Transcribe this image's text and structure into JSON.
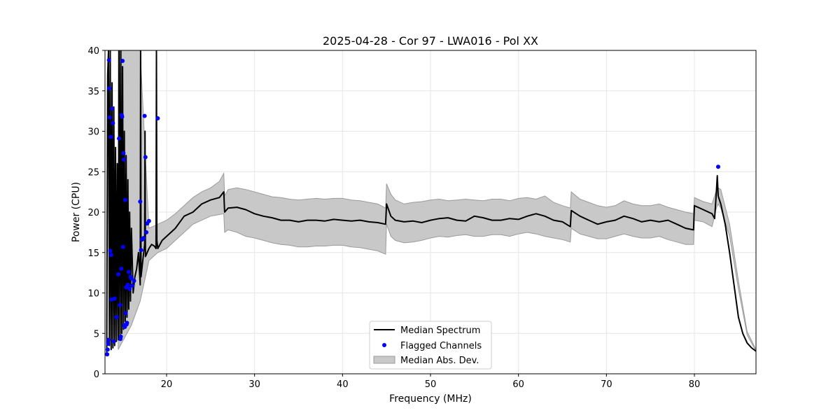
{
  "chart_data": {
    "type": "line",
    "title": "2025-04-28 - Cor 97 - LWA016 - Pol XX",
    "xlabel": "Frequency (MHz)",
    "ylabel": "Power (CPU)",
    "xlim": [
      13.0,
      87.0
    ],
    "ylim": [
      0,
      40
    ],
    "xticks": [
      20,
      30,
      40,
      50,
      60,
      70,
      80
    ],
    "yticks": [
      0,
      5,
      10,
      15,
      20,
      25,
      30,
      35,
      40
    ],
    "grid": true,
    "legend_position": "lower-center",
    "colors": {
      "median": "#000000",
      "flagged": "#0000ff",
      "mad_fill": "#c8c8c8",
      "mad_edge": "#9a9a9a"
    },
    "series": [
      {
        "name": "Median Spectrum",
        "kind": "line",
        "x": [
          13.2,
          13.3,
          13.4,
          13.5,
          13.6,
          13.7,
          13.8,
          13.9,
          14.0,
          14.1,
          14.2,
          14.3,
          14.4,
          14.5,
          14.6,
          14.7,
          14.8,
          14.9,
          15.0,
          15.1,
          15.2,
          15.3,
          15.4,
          15.5,
          15.6,
          15.7,
          15.8,
          15.9,
          16.0,
          16.2,
          16.4,
          16.6,
          16.8,
          17.0,
          17.05,
          17.1,
          17.3,
          17.5,
          17.55,
          17.6,
          17.8,
          18.0,
          18.3,
          18.6,
          18.8,
          18.85,
          18.9,
          19.0,
          19.5,
          20.0,
          21.0,
          22.0,
          23.0,
          24.0,
          25.0,
          26.0,
          26.5,
          26.6,
          27.0,
          28.0,
          29.0,
          30.0,
          31.0,
          32.0,
          33.0,
          34.0,
          35.0,
          36.0,
          37.0,
          38.0,
          39.0,
          40.0,
          41.0,
          42.0,
          43.0,
          44.0,
          44.9,
          45.0,
          45.5,
          46.0,
          47.0,
          48.0,
          49.0,
          50.0,
          51.0,
          52.0,
          53.0,
          54.0,
          55.0,
          56.0,
          57.0,
          58.0,
          59.0,
          60.0,
          61.0,
          62.0,
          63.0,
          64.0,
          65.0,
          65.9,
          66.0,
          67.0,
          68.0,
          69.0,
          70.0,
          71.0,
          72.0,
          73.0,
          74.0,
          75.0,
          76.0,
          77.0,
          78.0,
          79.0,
          79.9,
          80.0,
          81.0,
          82.0,
          82.3,
          82.5,
          82.6,
          82.7,
          83.0,
          83.5,
          84.0,
          84.5,
          85.0,
          85.5,
          86.0,
          86.5,
          87.0
        ],
        "values": [
          2.5,
          37.0,
          40.0,
          3.5,
          40.0,
          3.0,
          36.0,
          3.2,
          33.0,
          3.5,
          28.0,
          4.0,
          26.0,
          4.2,
          40.0,
          4.5,
          40.0,
          5.0,
          38.0,
          5.5,
          30.0,
          6.5,
          27.0,
          7.0,
          24.0,
          8.0,
          20.0,
          9.0,
          18.0,
          10.0,
          12.0,
          13.0,
          15.0,
          11.0,
          40.0,
          12.0,
          14.0,
          16.0,
          30.0,
          14.5,
          15.0,
          15.5,
          16.0,
          15.8,
          15.5,
          40.0,
          16.5,
          15.5,
          16.5,
          17.0,
          18.0,
          19.5,
          20.0,
          21.0,
          21.5,
          21.8,
          22.5,
          20.0,
          20.5,
          20.6,
          20.3,
          19.8,
          19.5,
          19.3,
          19.0,
          19.0,
          18.8,
          19.0,
          19.0,
          18.9,
          19.1,
          19.0,
          18.9,
          19.0,
          18.8,
          18.7,
          18.5,
          21.0,
          19.5,
          19.0,
          18.8,
          18.9,
          18.7,
          19.0,
          19.2,
          19.3,
          19.0,
          18.9,
          19.5,
          19.3,
          19.0,
          19.0,
          19.2,
          19.1,
          19.5,
          19.8,
          19.5,
          19.0,
          18.8,
          18.2,
          20.2,
          19.5,
          19.0,
          18.5,
          18.8,
          19.0,
          19.5,
          19.2,
          18.8,
          19.0,
          18.8,
          19.0,
          18.5,
          18.0,
          17.8,
          20.8,
          20.3,
          19.8,
          19.2,
          22.5,
          24.5,
          22.0,
          21.0,
          18.5,
          15.0,
          11.0,
          7.0,
          5.0,
          3.8,
          3.2,
          2.8
        ]
      },
      {
        "name": "Flagged Channels",
        "kind": "scatter",
        "x": [
          13.25,
          13.3,
          13.35,
          13.4,
          13.45,
          13.5,
          13.55,
          13.6,
          13.65,
          13.7,
          13.75,
          13.8,
          13.9,
          14.0,
          14.1,
          14.3,
          14.5,
          14.6,
          14.7,
          14.75,
          14.8,
          14.85,
          14.9,
          14.95,
          15.0,
          15.05,
          15.1,
          15.15,
          15.2,
          15.25,
          15.3,
          15.35,
          15.4,
          15.45,
          15.5,
          15.6,
          15.7,
          15.8,
          15.9,
          16.0,
          16.1,
          16.3,
          17.0,
          17.1,
          17.2,
          17.4,
          17.5,
          17.6,
          17.7,
          17.8,
          18.0,
          19.0,
          82.7
        ],
        "values": [
          2.4,
          3.0,
          3.7,
          4.2,
          38.8,
          35.3,
          31.7,
          15.2,
          29.3,
          14.7,
          9.2,
          32.8,
          31.0,
          4.0,
          9.3,
          7.0,
          12.3,
          29.1,
          8.5,
          4.3,
          4.6,
          13.0,
          32.0,
          31.8,
          38.7,
          15.7,
          27.3,
          26.5,
          6.0,
          5.8,
          21.5,
          7.5,
          10.7,
          6.1,
          6.3,
          11.0,
          12.6,
          10.5,
          12.0,
          11.8,
          10.9,
          11.5,
          21.3,
          15.3,
          16.6,
          16.8,
          31.9,
          26.8,
          17.5,
          18.6,
          18.9,
          31.6,
          25.6
        ]
      },
      {
        "name": "Median Abs. Dev.",
        "kind": "band",
        "x": [
          14.5,
          15.0,
          16.0,
          17.0,
          18.0,
          19.0,
          20.0,
          21.0,
          22.0,
          23.0,
          24.0,
          25.0,
          26.0,
          26.5,
          26.6,
          27.0,
          28.0,
          29.0,
          30.0,
          31.0,
          32.0,
          33.0,
          34.0,
          35.0,
          36.0,
          37.0,
          38.0,
          39.0,
          40.0,
          41.0,
          42.0,
          43.0,
          44.0,
          44.9,
          45.0,
          45.5,
          46.0,
          47.0,
          48.0,
          49.0,
          50.0,
          51.0,
          52.0,
          53.0,
          54.0,
          55.0,
          56.0,
          57.0,
          58.0,
          59.0,
          60.0,
          61.0,
          62.0,
          63.0,
          64.0,
          65.0,
          65.9,
          66.0,
          67.0,
          68.0,
          69.0,
          70.0,
          71.0,
          72.0,
          73.0,
          74.0,
          75.0,
          76.0,
          77.0,
          78.0,
          79.0,
          79.9,
          80.0,
          81.0,
          82.0,
          82.5,
          82.7,
          83.0,
          84.0,
          85.0,
          86.0,
          87.0
        ],
        "lower": [
          3.0,
          4.0,
          6.0,
          9.0,
          14.0,
          15.0,
          15.5,
          16.5,
          17.5,
          18.5,
          19.0,
          19.5,
          19.7,
          19.8,
          17.5,
          17.8,
          17.5,
          17.0,
          16.8,
          16.5,
          16.2,
          16.0,
          15.9,
          15.7,
          15.7,
          15.8,
          15.8,
          15.9,
          15.9,
          15.7,
          15.6,
          15.4,
          15.2,
          14.8,
          18.5,
          17.0,
          16.5,
          16.2,
          16.3,
          16.5,
          16.8,
          17.0,
          16.9,
          17.1,
          17.2,
          17.0,
          17.0,
          17.2,
          17.2,
          17.0,
          17.3,
          17.5,
          17.3,
          17.0,
          16.8,
          16.6,
          16.3,
          18.0,
          17.3,
          17.0,
          16.7,
          16.7,
          17.0,
          17.3,
          17.0,
          16.8,
          16.8,
          17.0,
          16.6,
          16.3,
          16.0,
          16.0,
          19.0,
          18.8,
          18.2,
          20.5,
          21.0,
          20.5,
          17.0,
          10.5,
          4.8,
          2.8
        ],
        "upper": [
          40.0,
          40.0,
          40.0,
          40.0,
          18.0,
          18.5,
          19.0,
          19.8,
          20.8,
          21.8,
          22.5,
          23.0,
          23.8,
          24.8,
          22.0,
          22.8,
          23.0,
          22.8,
          22.5,
          22.2,
          21.9,
          21.8,
          21.6,
          21.5,
          21.6,
          21.7,
          21.6,
          21.7,
          21.7,
          21.5,
          21.4,
          21.2,
          21.0,
          20.5,
          23.5,
          22.2,
          21.5,
          21.0,
          21.2,
          21.3,
          21.5,
          21.6,
          21.4,
          21.5,
          21.6,
          21.5,
          21.4,
          21.6,
          21.6,
          21.4,
          21.7,
          21.8,
          21.6,
          22.0,
          21.2,
          20.8,
          20.5,
          22.5,
          21.6,
          21.2,
          20.8,
          20.6,
          20.8,
          21.4,
          21.0,
          20.8,
          20.8,
          21.0,
          20.6,
          20.3,
          20.0,
          19.8,
          21.8,
          21.3,
          21.0,
          22.7,
          23.0,
          22.8,
          18.5,
          11.5,
          5.2,
          3.0
        ]
      }
    ]
  }
}
